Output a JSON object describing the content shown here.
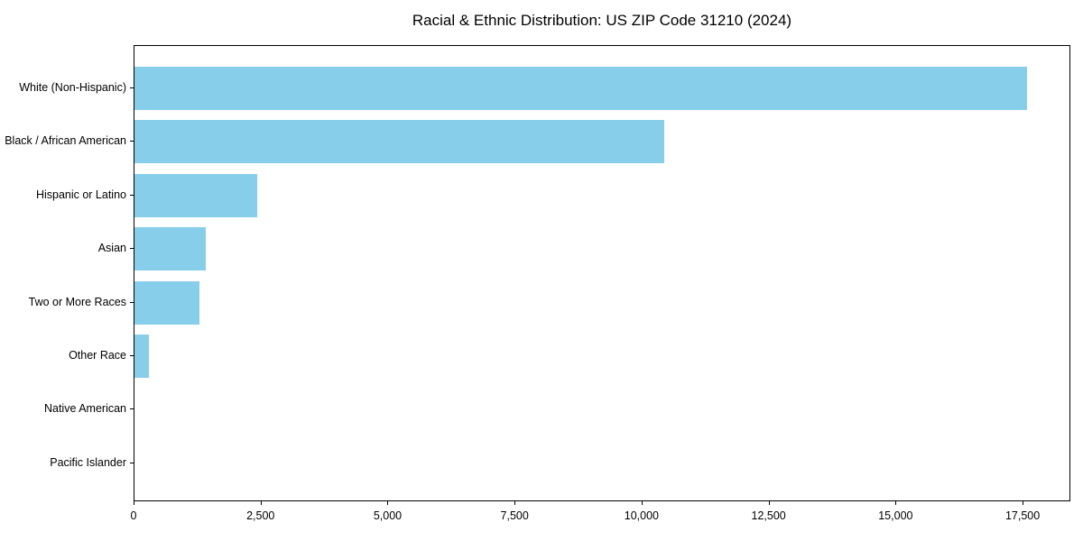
{
  "title": "Racial & Ethnic Distribution: US ZIP Code 31210 (2024)",
  "colors": {
    "bar": "#87CEEB",
    "axis": "#000000",
    "background": "#FFFFFF",
    "text": "#000000"
  },
  "chart_data": {
    "type": "bar",
    "orientation": "horizontal",
    "title": "Racial & Ethnic Distribution: US ZIP Code 31210 (2024)",
    "categories": [
      "White (Non-Hispanic)",
      "Black / African American",
      "Hispanic or Latino",
      "Asian",
      "Two or More Races",
      "Other Race",
      "Native American",
      "Pacific Islander"
    ],
    "values": [
      17570,
      10430,
      2420,
      1400,
      1280,
      290,
      0,
      0
    ],
    "xlabel": "",
    "ylabel": "",
    "xlim": [
      0,
      18440
    ],
    "x_ticks": [
      0,
      2500,
      5000,
      7500,
      10000,
      12500,
      15000,
      17500
    ],
    "x_tick_labels": [
      "0",
      "2,500",
      "5,000",
      "7,500",
      "10,000",
      "12,500",
      "15,000",
      "17,500"
    ],
    "grid": false,
    "legend": false,
    "bar_color": "#87CEEB"
  }
}
